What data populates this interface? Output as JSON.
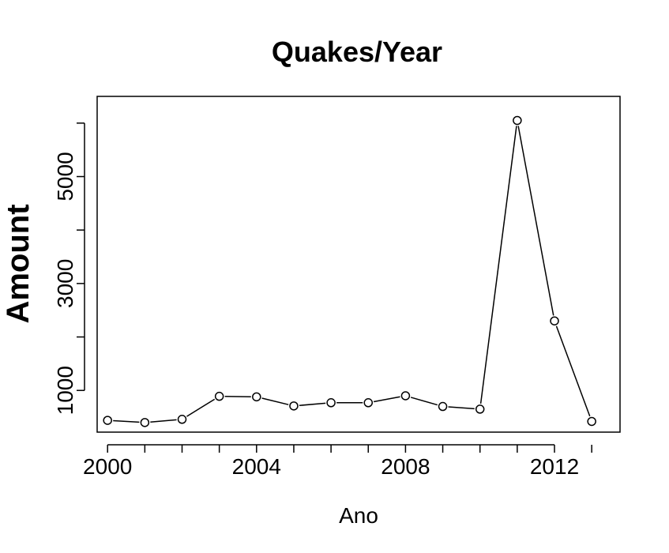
{
  "chart_data": {
    "type": "line",
    "title": "Quakes/Year",
    "xlabel": "Ano",
    "ylabel": "Amount",
    "x": [
      2000,
      2001,
      2002,
      2003,
      2004,
      2005,
      2006,
      2007,
      2008,
      2009,
      2010,
      2011,
      2012,
      2013
    ],
    "values": [
      440,
      400,
      460,
      890,
      880,
      710,
      770,
      770,
      900,
      700,
      650,
      6050,
      2300,
      420
    ],
    "xticks": [
      2000,
      2004,
      2008,
      2012
    ],
    "yticks": [
      1000,
      3000,
      5000
    ],
    "xlim": [
      1999.72,
      2013.76
    ],
    "ylim": [
      220,
      6500
    ],
    "marker": "open-circle",
    "grid": false
  }
}
